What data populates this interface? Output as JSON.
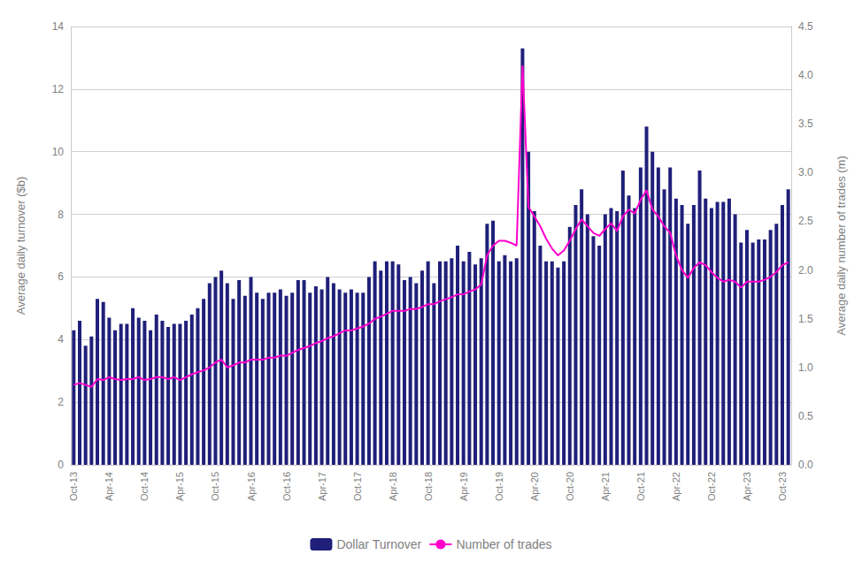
{
  "chart_data": {
    "type": "bar",
    "ylabel": "Average daily turnover ($b)",
    "y2label": "Average daily number of trades (m)",
    "ylim": [
      0,
      14
    ],
    "yticks": [
      0,
      2,
      4,
      6,
      8,
      10,
      12,
      14
    ],
    "y2lim": [
      0,
      4.5
    ],
    "y2ticks": [
      {
        "value": 0,
        "label": "0.0"
      },
      0.5,
      {
        "value": 1,
        "label": "1.0"
      },
      1.5,
      {
        "value": 2,
        "label": "2.0"
      },
      2.5,
      {
        "value": 3,
        "label": "3.0"
      },
      3.5,
      {
        "value": 4,
        "label": "4.0"
      },
      4.5
    ],
    "grid": true,
    "legend": "bottom",
    "categories": [
      "Oct-13",
      null,
      null,
      null,
      null,
      null,
      "Apr-14",
      null,
      null,
      null,
      null,
      null,
      "Oct-14",
      null,
      null,
      null,
      null,
      null,
      "Apr-15",
      null,
      null,
      null,
      null,
      null,
      "Oct-15",
      null,
      null,
      null,
      null,
      null,
      "Apr-16",
      null,
      null,
      null,
      null,
      null,
      "Oct-16",
      null,
      null,
      null,
      null,
      null,
      "Apr-17",
      null,
      null,
      null,
      null,
      null,
      "Oct-17",
      null,
      null,
      null,
      null,
      null,
      "Apr-18",
      null,
      null,
      null,
      null,
      null,
      "Oct-18",
      null,
      null,
      null,
      null,
      null,
      "Apr-19",
      null,
      null,
      null,
      null,
      null,
      "Oct-19",
      null,
      null,
      null,
      null,
      null,
      "Apr-20",
      null,
      null,
      null,
      null,
      null,
      "Oct-20",
      null,
      null,
      null,
      null,
      null,
      "Apr-21",
      null,
      null,
      null,
      null,
      null,
      "Oct-21",
      null,
      null,
      null,
      null,
      null,
      "Apr-22",
      null,
      null,
      null,
      null,
      null,
      "Oct-22",
      null,
      null,
      null,
      null,
      null,
      "Apr-23",
      null,
      null,
      null,
      null,
      null,
      "Oct-23",
      null
    ],
    "series": [
      {
        "name": "Dollar Turnover",
        "type": "bar",
        "color": "#1f1f7a",
        "values": [
          4.3,
          4.6,
          3.8,
          4.1,
          5.3,
          5.2,
          4.7,
          4.3,
          4.5,
          4.5,
          5.0,
          4.7,
          4.6,
          4.3,
          4.8,
          4.6,
          4.4,
          4.5,
          4.5,
          4.6,
          4.8,
          5.0,
          5.3,
          5.8,
          6.0,
          6.2,
          5.8,
          5.3,
          5.9,
          5.4,
          6.0,
          5.5,
          5.3,
          5.5,
          5.5,
          5.6,
          5.4,
          5.5,
          5.9,
          5.9,
          5.5,
          5.7,
          5.6,
          6.0,
          5.8,
          5.6,
          5.5,
          5.6,
          5.5,
          5.5,
          6.0,
          6.5,
          6.2,
          6.5,
          6.5,
          6.4,
          5.9,
          6.0,
          5.8,
          6.2,
          6.5,
          5.8,
          6.5,
          6.5,
          6.6,
          7.0,
          6.5,
          6.8,
          6.4,
          6.6,
          7.7,
          7.8,
          6.5,
          6.7,
          6.5,
          6.6,
          13.3,
          10.0,
          8.1,
          7.0,
          6.5,
          6.5,
          6.3,
          6.5,
          7.6,
          8.3,
          8.8,
          8.0,
          7.3,
          7.0,
          8.0,
          8.2,
          8.1,
          9.4,
          8.6,
          8.2,
          9.5,
          10.8,
          10.0,
          9.5,
          8.8,
          9.5,
          8.5,
          8.3,
          7.7,
          8.3,
          9.4,
          8.5,
          8.2,
          8.4,
          8.4,
          8.5,
          8.0,
          7.1,
          7.5,
          7.1,
          7.2,
          7.2,
          7.5,
          7.7,
          8.3,
          8.8
        ]
      },
      {
        "name": "Number of trades",
        "type": "line",
        "axis": "y2",
        "color": "#ff00cc",
        "values": [
          0.82,
          0.84,
          0.82,
          0.8,
          0.88,
          0.87,
          0.9,
          0.88,
          0.87,
          0.88,
          0.88,
          0.9,
          0.87,
          0.88,
          0.9,
          0.9,
          0.88,
          0.9,
          0.87,
          0.9,
          0.93,
          0.95,
          0.97,
          1.0,
          1.05,
          1.08,
          1.0,
          1.02,
          1.05,
          1.05,
          1.08,
          1.08,
          1.08,
          1.1,
          1.1,
          1.12,
          1.12,
          1.15,
          1.18,
          1.2,
          1.22,
          1.25,
          1.27,
          1.3,
          1.32,
          1.35,
          1.38,
          1.38,
          1.4,
          1.42,
          1.45,
          1.5,
          1.52,
          1.55,
          1.58,
          1.58,
          1.58,
          1.6,
          1.6,
          1.62,
          1.65,
          1.65,
          1.68,
          1.7,
          1.72,
          1.75,
          1.75,
          1.78,
          1.8,
          1.85,
          2.15,
          2.25,
          2.3,
          2.3,
          2.28,
          2.25,
          4.1,
          2.65,
          2.55,
          2.45,
          2.32,
          2.22,
          2.15,
          2.2,
          2.3,
          2.42,
          2.52,
          2.45,
          2.38,
          2.35,
          2.42,
          2.48,
          2.4,
          2.55,
          2.62,
          2.58,
          2.72,
          2.82,
          2.62,
          2.55,
          2.45,
          2.38,
          2.15,
          2.0,
          1.92,
          2.02,
          2.08,
          2.05,
          1.98,
          1.92,
          1.88,
          1.9,
          1.88,
          1.82,
          1.88,
          1.88,
          1.88,
          1.9,
          1.93,
          1.98,
          2.05,
          2.08
        ]
      }
    ]
  }
}
